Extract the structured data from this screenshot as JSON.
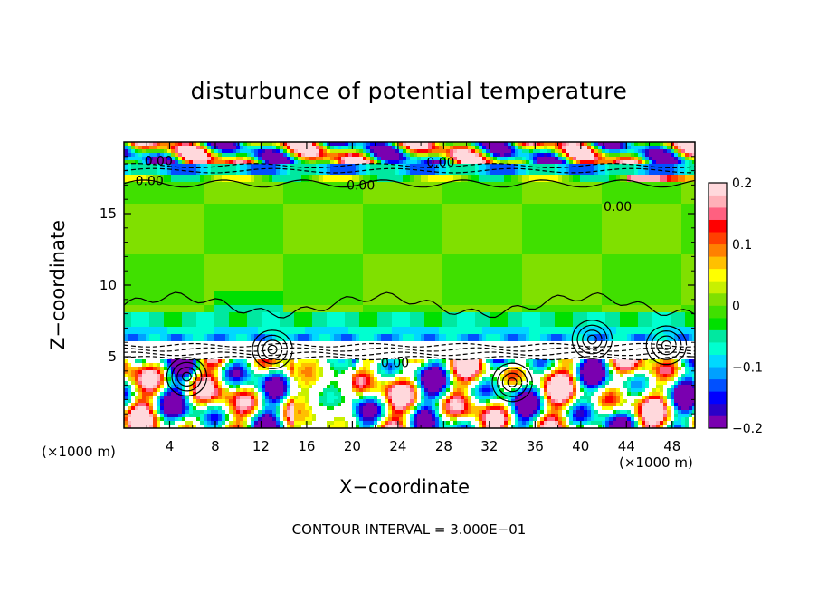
{
  "chart_data": {
    "type": "heatmap",
    "title": "disturbunce of potential temperature",
    "xlabel": "X−coordinate",
    "ylabel": "Z−coordinate",
    "x_unit": "(×1000 m)",
    "y_unit": "(×1000 m)",
    "xlim": [
      0,
      50
    ],
    "ylim": [
      0,
      20
    ],
    "x_ticks": [
      4,
      8,
      12,
      16,
      20,
      24,
      28,
      32,
      36,
      40,
      44,
      48
    ],
    "y_ticks": [
      5,
      10,
      15
    ],
    "colorbar": {
      "range": [
        -0.2,
        0.2
      ],
      "ticks": [
        "0.2",
        "0.1",
        "0",
        "−0.1",
        "−0.2"
      ],
      "tick_values": [
        0.2,
        0.1,
        0,
        -0.1,
        -0.2
      ],
      "colors": [
        "#7a00b0",
        "#2a00c8",
        "#0000ff",
        "#0050ff",
        "#00a0ff",
        "#00d8ff",
        "#00ffd0",
        "#00e8a0",
        "#00e000",
        "#40e000",
        "#80e000",
        "#c8f000",
        "#ffff00",
        "#ffc000",
        "#ff8000",
        "#ff4000",
        "#ff0000",
        "#ff6080",
        "#ffb0b8",
        "#ffd8dc"
      ]
    },
    "contour_labels": [
      {
        "text": "0.00",
        "x": 1.8,
        "z": 18.7
      },
      {
        "text": "0.00",
        "x": 1.0,
        "z": 17.3
      },
      {
        "text": "0.00",
        "x": 19.5,
        "z": 17.0
      },
      {
        "text": "0.00",
        "x": 26.5,
        "z": 18.6
      },
      {
        "text": "0.00",
        "x": 42.0,
        "z": 15.5
      },
      {
        "text": "0.00",
        "x": 22.5,
        "z": 4.6
      }
    ],
    "contour_interval_text": "CONTOUR INTERVAL = 3.000E−01"
  }
}
